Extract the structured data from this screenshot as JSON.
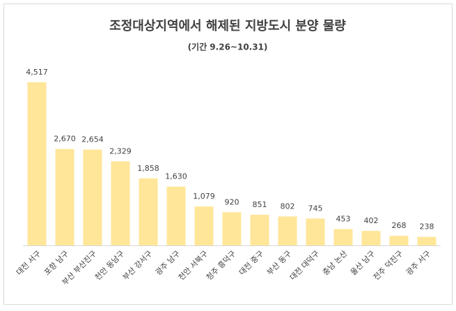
{
  "chart_data": {
    "type": "bar",
    "title": "조정대상지역에서 해제된 지방도시 분양 물량",
    "subtitle": "(기간 9.26~10.31)",
    "categories": [
      "대전 서구",
      "포항 남구",
      "부산 부산진구",
      "천안 동남구",
      "부산 강서구",
      "광주 남구",
      "천안 서북구",
      "청주 흥덕구",
      "대전 중구",
      "부산 동구",
      "대전 대덕구",
      "충남 논산",
      "울산 남구",
      "전주 덕진구",
      "광주 서구"
    ],
    "values": [
      4517,
      2670,
      2654,
      2329,
      1858,
      1630,
      1079,
      920,
      851,
      802,
      745,
      453,
      402,
      268,
      238
    ],
    "value_labels": [
      "4,517",
      "2,670",
      "2,654",
      "2,329",
      "1,858",
      "1,630",
      "1,079",
      "920",
      "851",
      "802",
      "745",
      "453",
      "402",
      "268",
      "238"
    ],
    "color": "#ffe699",
    "ylim": [
      0,
      5000
    ]
  }
}
